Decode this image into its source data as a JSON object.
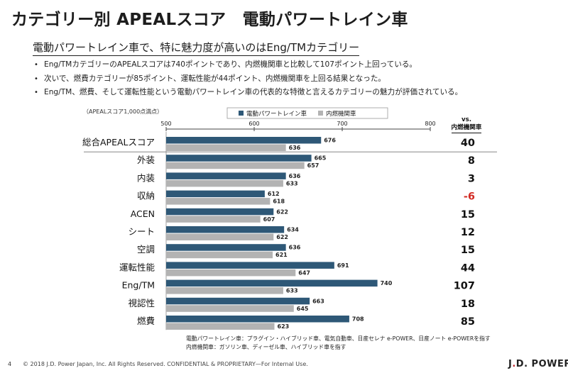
{
  "slide": {
    "title": "カテゴリー別 APEALスコア　電動パワートレイン車",
    "subtitle": "電動パワートレイン車で、特に魅力度が高いのはEng/TMカテゴリー",
    "bullets": [
      "Eng/TMカテゴリーのAPEALスコアは740ポイントであり、内燃機関車と比較して107ポイント上回っている。",
      "次いで、燃費カテゴリーが85ポイント、運転性能が44ポイント、内燃機関車を上回る結果となった。",
      "Eng/TM、燃費、そして運転性能という電動パワートレイン車の代表的な特徴と言えるカテゴリーの魅力が評価されている。"
    ],
    "bullet_marker": "•",
    "unit_note": "（APEALスコア1,000点満点）",
    "vs_header_line1": "vs.",
    "vs_header_line2": "内燃機関車",
    "footnote_lines": [
      "電動パワートレイン車：プラグイン・ハイブリッド車、電気自動車、日産セレナ e-POWER、日産ノート e-POWERを指す",
      "内燃機関車：ガソリン車、ディーゼル車、ハイブリッド車を指す"
    ],
    "page_number": "4",
    "copyright": "© 2018 J.D. Power Japan, Inc. All Rights Reserved. CONFIDENTIAL & PROPRIETARY—For Internal Use.",
    "brand_prefix": "J",
    "brand_dot": ".",
    "brand_rest": "D. POWER"
  },
  "chart_data": {
    "type": "bar",
    "orientation": "horizontal",
    "categories": [
      "総合APEALスコア",
      "外装",
      "内装",
      "収納",
      "ACEN",
      "シート",
      "空調",
      "運転性能",
      "Eng/TM",
      "視認性",
      "燃費"
    ],
    "series": [
      {
        "name": "電動パワートレイン車",
        "color": "#2e5877",
        "values": [
          676,
          665,
          636,
          612,
          622,
          634,
          636,
          691,
          740,
          663,
          708
        ]
      },
      {
        "name": "内燃機関車",
        "color": "#b3b3b3",
        "values": [
          636,
          657,
          633,
          618,
          607,
          622,
          621,
          647,
          633,
          645,
          623
        ]
      }
    ],
    "differences": [
      "40",
      "8",
      "3",
      "-6",
      "15",
      "12",
      "15",
      "44",
      "107",
      "18",
      "85"
    ],
    "negative_color": "#d32a23",
    "xlim": [
      500,
      800
    ],
    "xticks": [
      500,
      600,
      700,
      800
    ],
    "legend_position": "top-center",
    "grid": false
  }
}
